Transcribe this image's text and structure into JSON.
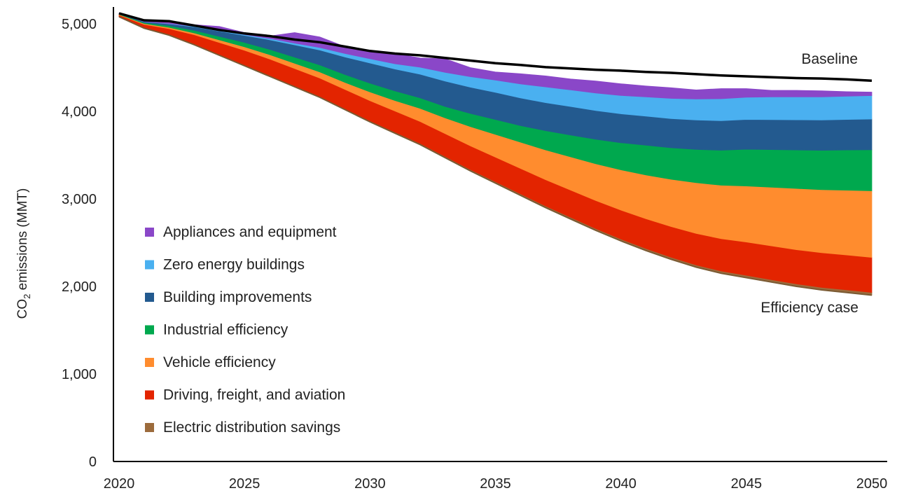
{
  "chart_data": {
    "type": "area",
    "title": "",
    "xlabel": "",
    "ylabel_main": "CO",
    "ylabel_sub": "2",
    "ylabel_rest": " emissions (MMT)",
    "xlim": [
      2020,
      2050
    ],
    "ylim": [
      0,
      5200
    ],
    "xticks": [
      2020,
      2025,
      2030,
      2035,
      2040,
      2045,
      2050
    ],
    "yticks": [
      0,
      1000,
      2000,
      3000,
      4000,
      5000
    ],
    "ytick_labels": [
      "0",
      "1,000",
      "2,000",
      "3,000",
      "4,000",
      "5,000"
    ],
    "xtick_labels": [
      "2020",
      "2025",
      "2030",
      "2035",
      "2040",
      "2045",
      "2050"
    ],
    "legend_position": "left",
    "x": [
      2020,
      2021,
      2022,
      2023,
      2024,
      2025,
      2026,
      2027,
      2028,
      2029,
      2030,
      2031,
      2032,
      2033,
      2034,
      2035,
      2036,
      2037,
      2038,
      2039,
      2040,
      2041,
      2042,
      2043,
      2044,
      2045,
      2046,
      2047,
      2048,
      2049,
      2050
    ],
    "baseline": {
      "label": "Baseline",
      "color": "#000000",
      "values": [
        5120,
        5040,
        5030,
        4980,
        4930,
        4890,
        4860,
        4820,
        4790,
        4740,
        4690,
        4660,
        4640,
        4610,
        4580,
        4550,
        4530,
        4505,
        4490,
        4475,
        4465,
        4450,
        4440,
        4425,
        4410,
        4400,
        4390,
        4380,
        4375,
        4365,
        4350
      ]
    },
    "efficiency_case": {
      "label": "Efficiency case",
      "values": [
        5080,
        4950,
        4870,
        4760,
        4640,
        4520,
        4400,
        4280,
        4160,
        4020,
        3880,
        3750,
        3620,
        3470,
        3320,
        3180,
        3040,
        2900,
        2770,
        2640,
        2520,
        2410,
        2310,
        2220,
        2150,
        2100,
        2050,
        2000,
        1960,
        1930,
        1900
      ]
    },
    "series": [
      {
        "name": "Electric distribution savings",
        "color": "#9C6B3C",
        "values": [
          2,
          3,
          4,
          5,
          6,
          7,
          8,
          9,
          10,
          11,
          12,
          13,
          14,
          15,
          16,
          17,
          18,
          19,
          20,
          21,
          22,
          23,
          24,
          25,
          26,
          27,
          28,
          29,
          30,
          31,
          32
        ]
      },
      {
        "name": "Driving, freight, and aviation",
        "color": "#E32400",
        "values": [
          20,
          40,
          70,
          110,
          140,
          170,
          190,
          200,
          210,
          220,
          230,
          240,
          250,
          260,
          270,
          280,
          290,
          300,
          310,
          320,
          330,
          340,
          350,
          360,
          370,
          380,
          385,
          390,
          395,
          398,
          400
        ]
      },
      {
        "name": "Vehicle efficiency",
        "color": "#FF8C2E",
        "values": [
          5,
          10,
          15,
          20,
          30,
          40,
          50,
          60,
          70,
          80,
          100,
          120,
          150,
          180,
          220,
          260,
          300,
          340,
          380,
          420,
          460,
          500,
          540,
          580,
          610,
          640,
          670,
          700,
          720,
          740,
          760
        ]
      },
      {
        "name": "Industrial efficiency",
        "color": "#00A84E",
        "values": [
          5,
          10,
          20,
          30,
          40,
          50,
          60,
          70,
          80,
          90,
          100,
          110,
          120,
          130,
          150,
          170,
          190,
          220,
          250,
          280,
          310,
          340,
          360,
          380,
          400,
          420,
          430,
          440,
          450,
          460,
          470
        ]
      },
      {
        "name": "Building improvements",
        "color": "#235A8F",
        "values": [
          5,
          10,
          20,
          40,
          60,
          80,
          110,
          140,
          170,
          200,
          230,
          250,
          270,
          290,
          300,
          310,
          315,
          320,
          325,
          328,
          330,
          332,
          334,
          336,
          338,
          340,
          342,
          344,
          346,
          348,
          350
        ]
      },
      {
        "name": "Zero energy buildings",
        "color": "#4AB0F0",
        "values": [
          0,
          2,
          4,
          6,
          8,
          10,
          15,
          20,
          30,
          40,
          50,
          60,
          80,
          100,
          120,
          140,
          160,
          180,
          190,
          200,
          210,
          220,
          230,
          240,
          250,
          255,
          260,
          262,
          264,
          266,
          268
        ]
      },
      {
        "name": "Appliances and equipment",
        "color": "#8A47C8",
        "values": [
          3,
          15,
          32,
          19,
          46,
          23,
          27,
          121,
          120,
          79,
          78,
          117,
          106,
          155,
          104,
          93,
          117,
          126,
          125,
          138,
          133,
          125,
          122,
          104,
          116,
          98,
          75,
          75,
          70,
          52,
          40
        ]
      }
    ],
    "legend": [
      {
        "name": "Appliances and equipment",
        "color": "#8A47C8"
      },
      {
        "name": "Zero energy buildings",
        "color": "#4AB0F0"
      },
      {
        "name": "Building improvements",
        "color": "#235A8F"
      },
      {
        "name": "Industrial efficiency",
        "color": "#00A84E"
      },
      {
        "name": "Vehicle efficiency",
        "color": "#FF8C2E"
      },
      {
        "name": "Driving, freight, and aviation",
        "color": "#E32400"
      },
      {
        "name": "Electric distribution savings",
        "color": "#9C6B3C"
      }
    ]
  }
}
